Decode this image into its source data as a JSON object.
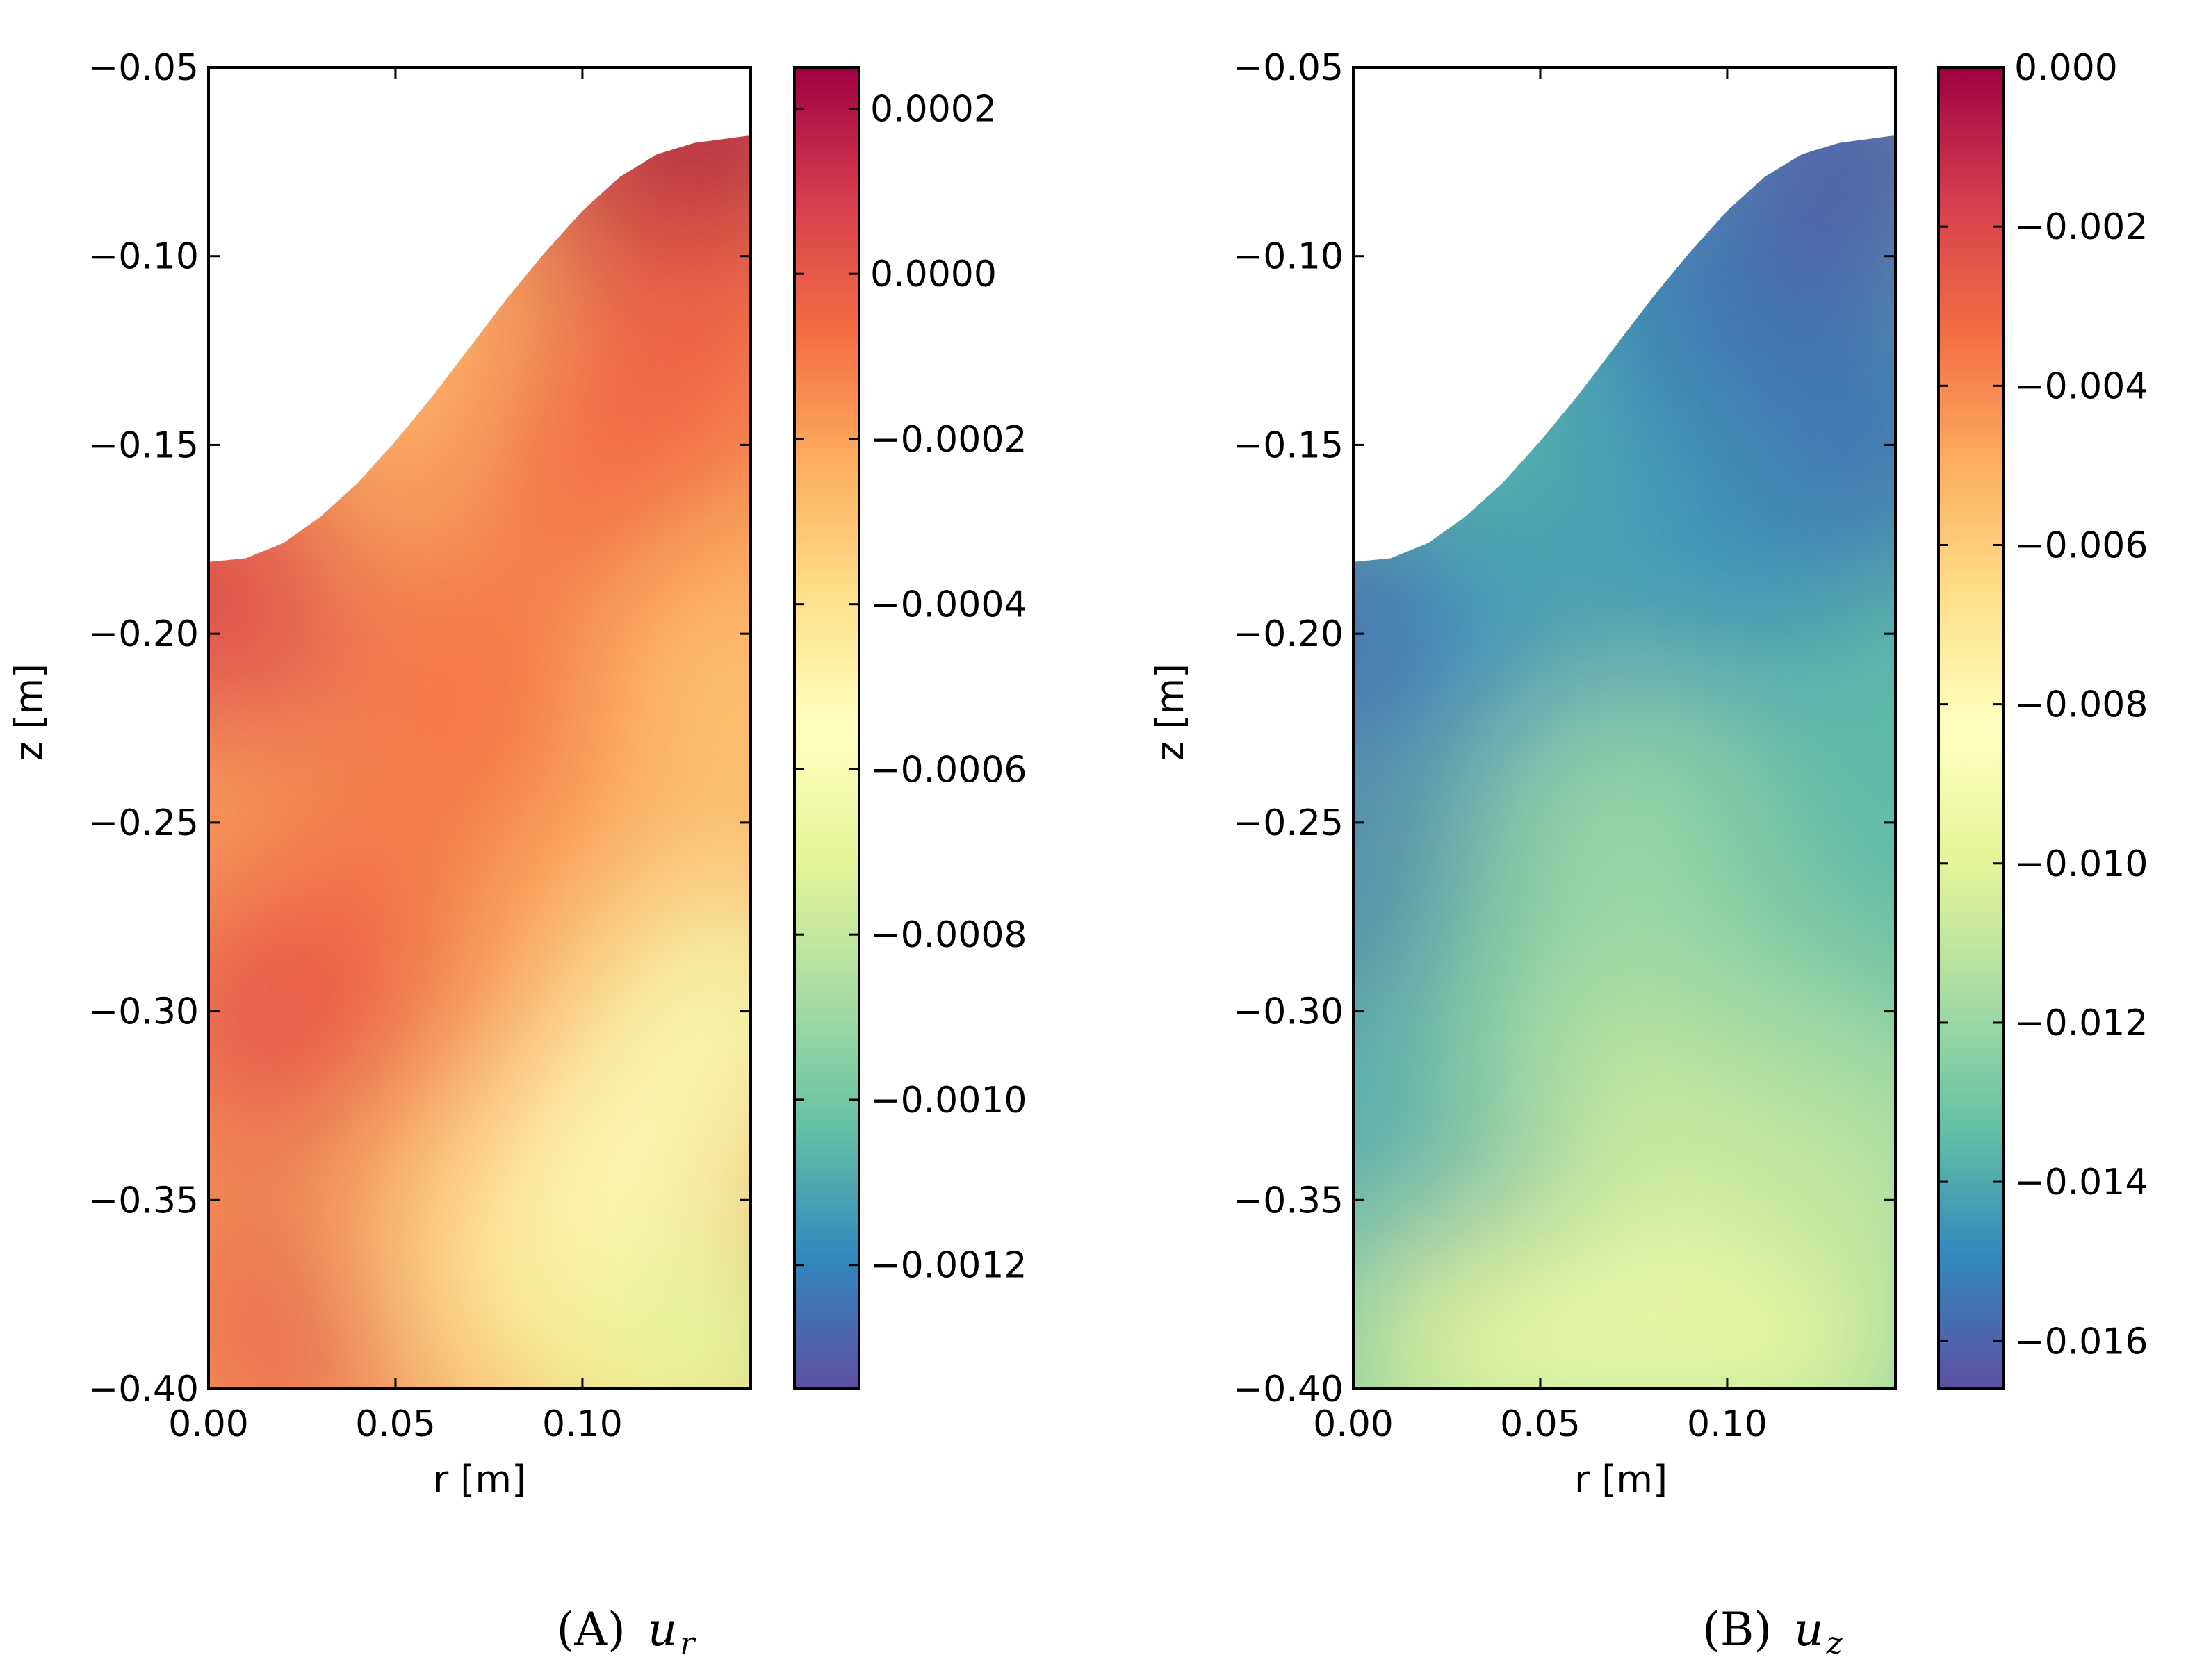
{
  "colormap": [
    "#5e4fa2",
    "#3288bd",
    "#66c2a5",
    "#abdda4",
    "#e6f598",
    "#ffffbf",
    "#fee08b",
    "#fdae61",
    "#f46d43",
    "#d53e4f",
    "#9e0142"
  ],
  "chart_data": [
    {
      "type": "heatmap",
      "caption": "(A)",
      "caption_var": "u",
      "caption_sub": "r",
      "xlabel": "r [m]",
      "ylabel": "z [m]",
      "xlim": [
        0.0,
        0.145
      ],
      "ylim": [
        -0.4,
        -0.05
      ],
      "xticks": [
        0.0,
        0.05,
        0.1
      ],
      "xtick_labels": [
        "0.00",
        "0.05",
        "0.10"
      ],
      "yticks": [
        -0.05,
        -0.1,
        -0.15,
        -0.2,
        -0.25,
        -0.3,
        -0.35,
        -0.4
      ],
      "ytick_labels": [
        "−0.05",
        "−0.10",
        "−0.15",
        "−0.20",
        "−0.25",
        "−0.30",
        "−0.35",
        "−0.40"
      ],
      "boundary_top": {
        "r": [
          0.0,
          0.01,
          0.02,
          0.03,
          0.04,
          0.05,
          0.06,
          0.07,
          0.08,
          0.09,
          0.1,
          0.11,
          0.12,
          0.13,
          0.145
        ],
        "z": [
          -0.181,
          -0.18,
          -0.176,
          -0.169,
          -0.16,
          -0.149,
          -0.137,
          -0.124,
          -0.111,
          -0.099,
          -0.088,
          -0.079,
          -0.073,
          -0.07,
          -0.068
        ]
      },
      "field_samples": [
        {
          "r": 0.0,
          "z": -0.19,
          "value": 2e-05
        },
        {
          "r": 0.02,
          "z": -0.186,
          "value": 8e-05
        },
        {
          "r": 0.02,
          "z": -0.3,
          "value": 4e-05
        },
        {
          "r": 0.03,
          "z": -0.38,
          "value": 2e-05
        },
        {
          "r": 0.05,
          "z": -0.28,
          "value": -4e-05
        },
        {
          "r": 0.06,
          "z": -0.175,
          "value": -0.00015
        },
        {
          "r": 0.075,
          "z": -0.14,
          "value": -0.00032
        },
        {
          "r": 0.07,
          "z": -0.36,
          "value": -0.00028
        },
        {
          "r": 0.08,
          "z": -0.22,
          "value": -8e-05
        },
        {
          "r": 0.09,
          "z": -0.38,
          "value": -0.00042
        },
        {
          "r": 0.1,
          "z": -0.15,
          "value": -6e-05
        },
        {
          "r": 0.1,
          "z": -0.28,
          "value": -0.00022
        },
        {
          "r": 0.11,
          "z": -0.34,
          "value": -0.00052
        },
        {
          "r": 0.12,
          "z": -0.085,
          "value": 0.00018
        },
        {
          "r": 0.135,
          "z": -0.075,
          "value": 0.00024
        },
        {
          "r": 0.13,
          "z": -0.12,
          "value": -4e-05
        },
        {
          "r": 0.14,
          "z": -0.22,
          "value": -0.0003
        },
        {
          "r": 0.14,
          "z": -0.3,
          "value": -0.00062
        },
        {
          "r": 0.14,
          "z": -0.39,
          "value": -0.00082
        },
        {
          "r": 0.125,
          "z": -0.395,
          "value": -0.0007
        }
      ],
      "colorbar": {
        "vmin": -0.00135,
        "vmax": 0.00025,
        "ticks": [
          0.0002,
          0.0,
          -0.0002,
          -0.0004,
          -0.0006,
          -0.0008,
          -0.001,
          -0.0012
        ],
        "tick_labels": [
          "0.0002",
          "0.0000",
          "−0.0002",
          "−0.0004",
          "−0.0006",
          "−0.0008",
          "−0.0010",
          "−0.0012"
        ]
      }
    },
    {
      "type": "heatmap",
      "caption": "(B)",
      "caption_var": "u",
      "caption_sub": "z",
      "xlabel": "r [m]",
      "ylabel": "z [m]",
      "xlim": [
        0.0,
        0.145
      ],
      "ylim": [
        -0.4,
        -0.05
      ],
      "xticks": [
        0.0,
        0.05,
        0.1
      ],
      "xtick_labels": [
        "0.00",
        "0.05",
        "0.10"
      ],
      "yticks": [
        -0.05,
        -0.1,
        -0.15,
        -0.2,
        -0.25,
        -0.3,
        -0.35,
        -0.4
      ],
      "ytick_labels": [
        "−0.05",
        "−0.10",
        "−0.15",
        "−0.20",
        "−0.25",
        "−0.30",
        "−0.35",
        "−0.40"
      ],
      "boundary_top": {
        "r": [
          0.0,
          0.01,
          0.02,
          0.03,
          0.04,
          0.05,
          0.06,
          0.07,
          0.08,
          0.09,
          0.1,
          0.11,
          0.12,
          0.13,
          0.145
        ],
        "z": [
          -0.181,
          -0.18,
          -0.176,
          -0.169,
          -0.16,
          -0.149,
          -0.137,
          -0.124,
          -0.111,
          -0.099,
          -0.088,
          -0.079,
          -0.073,
          -0.07,
          -0.068
        ]
      },
      "field_samples": [
        {
          "r": 0.0,
          "z": -0.2,
          "value": -0.0163
        },
        {
          "r": 0.01,
          "z": -0.28,
          "value": -0.0158
        },
        {
          "r": 0.01,
          "z": -0.35,
          "value": -0.014
        },
        {
          "r": 0.01,
          "z": -0.395,
          "value": -0.0125
        },
        {
          "r": 0.035,
          "z": -0.2,
          "value": -0.015
        },
        {
          "r": 0.04,
          "z": -0.3,
          "value": -0.013
        },
        {
          "r": 0.04,
          "z": -0.39,
          "value": -0.01
        },
        {
          "r": 0.06,
          "z": -0.17,
          "value": -0.014
        },
        {
          "r": 0.07,
          "z": -0.25,
          "value": -0.012
        },
        {
          "r": 0.08,
          "z": -0.32,
          "value": -0.0108
        },
        {
          "r": 0.085,
          "z": -0.385,
          "value": -0.0092
        },
        {
          "r": 0.09,
          "z": -0.11,
          "value": -0.0152
        },
        {
          "r": 0.1,
          "z": -0.18,
          "value": -0.0145
        },
        {
          "r": 0.11,
          "z": -0.28,
          "value": -0.0122
        },
        {
          "r": 0.12,
          "z": -0.39,
          "value": -0.0098
        },
        {
          "r": 0.125,
          "z": -0.09,
          "value": -0.0158
        },
        {
          "r": 0.135,
          "z": -0.07,
          "value": -0.0162
        },
        {
          "r": 0.14,
          "z": -0.15,
          "value": -0.0155
        },
        {
          "r": 0.14,
          "z": -0.25,
          "value": -0.0135
        },
        {
          "r": 0.14,
          "z": -0.34,
          "value": -0.0112
        }
      ],
      "colorbar": {
        "vmin": -0.0166,
        "vmax": 0.0,
        "ticks": [
          0.0,
          -0.002,
          -0.004,
          -0.006,
          -0.008,
          -0.01,
          -0.012,
          -0.014,
          -0.016
        ],
        "tick_labels": [
          "0.000",
          "−0.002",
          "−0.004",
          "−0.006",
          "−0.008",
          "−0.010",
          "−0.012",
          "−0.014",
          "−0.016"
        ]
      }
    }
  ]
}
